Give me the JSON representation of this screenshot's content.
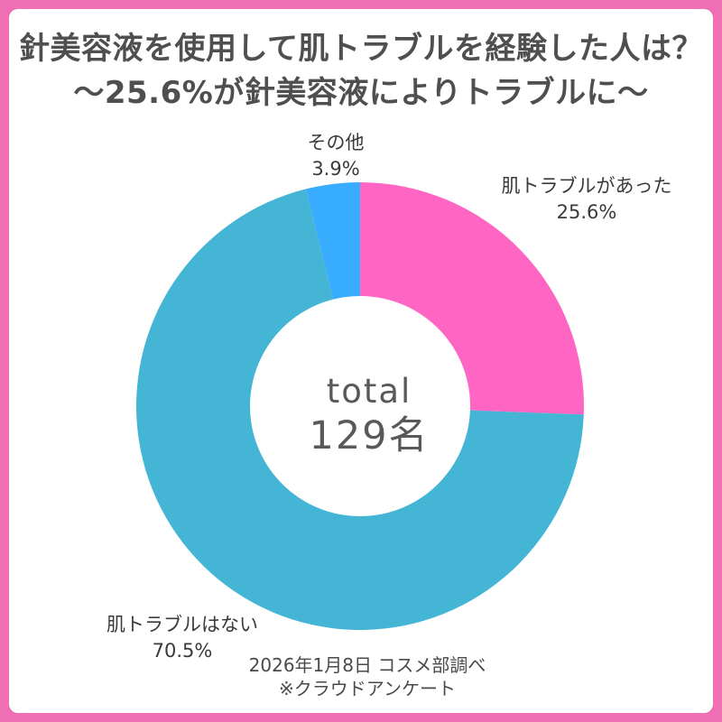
{
  "frame": {
    "border_color": "#F06EB4"
  },
  "title": {
    "line1": "針美容液を使用して肌トラブルを経験した人は？",
    "line2": "～25.6%が針美容液によりトラブルに～",
    "color": "#4F4F4F"
  },
  "chart_data": {
    "type": "pie",
    "donut": true,
    "start_angle_deg": 0,
    "direction": "clockwise",
    "categories": [
      "肌トラブルがあった",
      "肌トラブルはない",
      "その他"
    ],
    "values": [
      25.6,
      70.5,
      3.9
    ],
    "colors": [
      "#FF66C4",
      "#44B5D5",
      "#38ADFF"
    ],
    "labels": [
      {
        "name": "肌トラブルがあった",
        "pct": "25.6%"
      },
      {
        "name": "肌トラブルはない",
        "pct": "70.5%"
      },
      {
        "name": "その他",
        "pct": "3.9%"
      }
    ],
    "center": {
      "line1": "total",
      "line2": "129名"
    },
    "legend_position": "none",
    "grid": false
  },
  "footer": {
    "line1": "2026年1月8日 コスメ部調べ",
    "line2": "※クラウドアンケート"
  }
}
